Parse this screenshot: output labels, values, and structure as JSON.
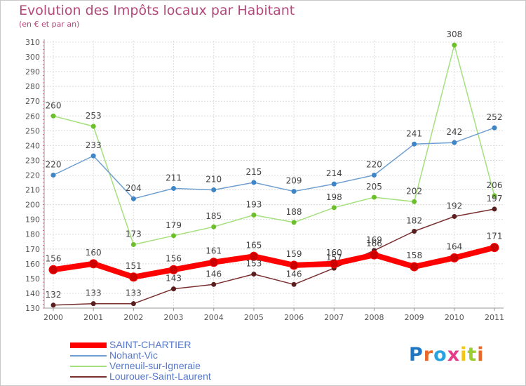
{
  "title": "Evolution des Impôts locaux par Habitant",
  "subtitle": "(en € et par an)",
  "logo": {
    "text": "Proxiti",
    "letter_colors": [
      "#1f77c4",
      "#e8682a",
      "#2aa2e0",
      "#e83a8c",
      "#f5c518",
      "#9acd32",
      "#e8682a"
    ]
  },
  "chart_data": {
    "type": "line",
    "title": "Evolution des Impôts locaux par Habitant",
    "subtitle": "(en € et par an)",
    "xlabel": "",
    "ylabel": "",
    "x": [
      "2000",
      "2001",
      "2002",
      "2003",
      "2004",
      "2005",
      "2006",
      "2007",
      "2008",
      "2009",
      "2010",
      "2011"
    ],
    "ylim": [
      130,
      310
    ],
    "yticks": [
      130,
      140,
      150,
      160,
      170,
      180,
      190,
      200,
      210,
      220,
      230,
      240,
      250,
      260,
      270,
      280,
      290,
      300,
      310
    ],
    "grid": true,
    "legend_position": "bottom-left",
    "series": [
      {
        "name": "SAINT-CHARTIER",
        "color": "#ff0000",
        "marker_color": "#cc0000",
        "values": [
          156,
          160,
          151,
          156,
          161,
          165,
          159,
          160,
          166,
          158,
          164,
          171
        ],
        "labels": [
          "156",
          "160",
          "151",
          "156",
          "161",
          "165",
          "159",
          "160",
          "166",
          "158",
          "164",
          "171"
        ]
      },
      {
        "name": "Nohant-Vic",
        "color": "#6f9fd0",
        "marker_color": "#3d85c6",
        "values": [
          220,
          233,
          204,
          211,
          210,
          215,
          209,
          214,
          220,
          241,
          242,
          252
        ],
        "labels": [
          "220",
          "233",
          "204",
          "211",
          "210",
          "215",
          "209",
          "214",
          "220",
          "241",
          "242",
          "252"
        ]
      },
      {
        "name": "Verneuil-sur-Igneraie",
        "color": "#a4e07c",
        "marker_color": "#6abf2a",
        "values": [
          260,
          253,
          173,
          179,
          185,
          193,
          188,
          198,
          205,
          202,
          308,
          206
        ],
        "labels": [
          "260",
          "253",
          "173",
          "179",
          "185",
          "193",
          "188",
          "198",
          "205",
          "202",
          "308",
          "206"
        ]
      },
      {
        "name": "Lourouer-Saint-Laurent",
        "color": "#7a2f2f",
        "marker_color": "#5a1e1e",
        "values": [
          132,
          133,
          133,
          143,
          146,
          153,
          146,
          157,
          169,
          182,
          192,
          197
        ],
        "labels": [
          "132",
          "133",
          "133",
          "143",
          "146",
          "153",
          "146",
          "157",
          "169",
          "182",
          "192",
          "197"
        ]
      }
    ]
  }
}
